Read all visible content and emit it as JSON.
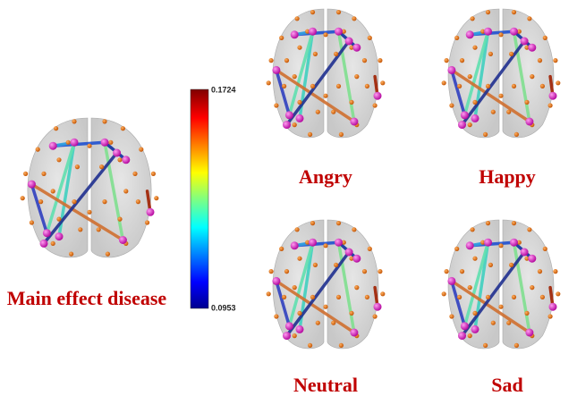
{
  "main_label": "Main effect disease",
  "colorbar": {
    "max": "0.1724",
    "min": "0.0953"
  },
  "panels": [
    "Angry",
    "Happy",
    "Neutral",
    "Sad"
  ]
}
